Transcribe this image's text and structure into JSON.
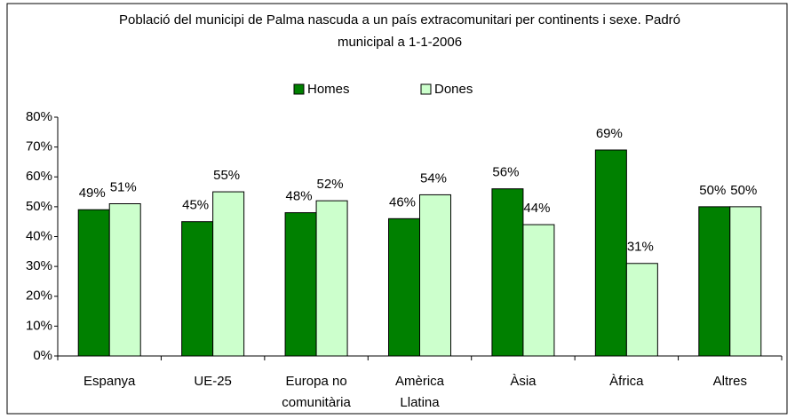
{
  "chart_data": {
    "type": "bar",
    "title": "Població del municipi de Palma nascuda a un país extracomunitari per continents i sexe. Padró municipal a 1-1-2006",
    "categories": [
      "Espanya",
      "UE-25",
      "Europa no comunitària",
      "Amèrica Llatina",
      "Àsia",
      "Àfrica",
      "Altres"
    ],
    "series": [
      {
        "name": "Homes",
        "color": "#008000",
        "values": [
          49,
          45,
          48,
          46,
          56,
          69,
          50
        ],
        "value_labels": [
          "49%",
          "45%",
          "48%",
          "46%",
          "56%",
          "69%",
          "50%"
        ]
      },
      {
        "name": "Dones",
        "color": "#ccffcc",
        "values": [
          51,
          55,
          52,
          54,
          44,
          31,
          50
        ],
        "value_labels": [
          "51%",
          "55%",
          "52%",
          "54%",
          "44%",
          "31%",
          "50%"
        ]
      }
    ],
    "ylim": [
      0,
      80
    ],
    "yticks": [
      {
        "value": 0,
        "label": "0%"
      },
      {
        "value": 10,
        "label": "10%"
      },
      {
        "value": 20,
        "label": "20%"
      },
      {
        "value": 30,
        "label": "30%"
      },
      {
        "value": 40,
        "label": "40%"
      },
      {
        "value": 50,
        "label": "50%"
      },
      {
        "value": 60,
        "label": "60%"
      },
      {
        "value": 70,
        "label": "70%"
      },
      {
        "value": 80,
        "label": "80%"
      }
    ],
    "legend": "top"
  }
}
